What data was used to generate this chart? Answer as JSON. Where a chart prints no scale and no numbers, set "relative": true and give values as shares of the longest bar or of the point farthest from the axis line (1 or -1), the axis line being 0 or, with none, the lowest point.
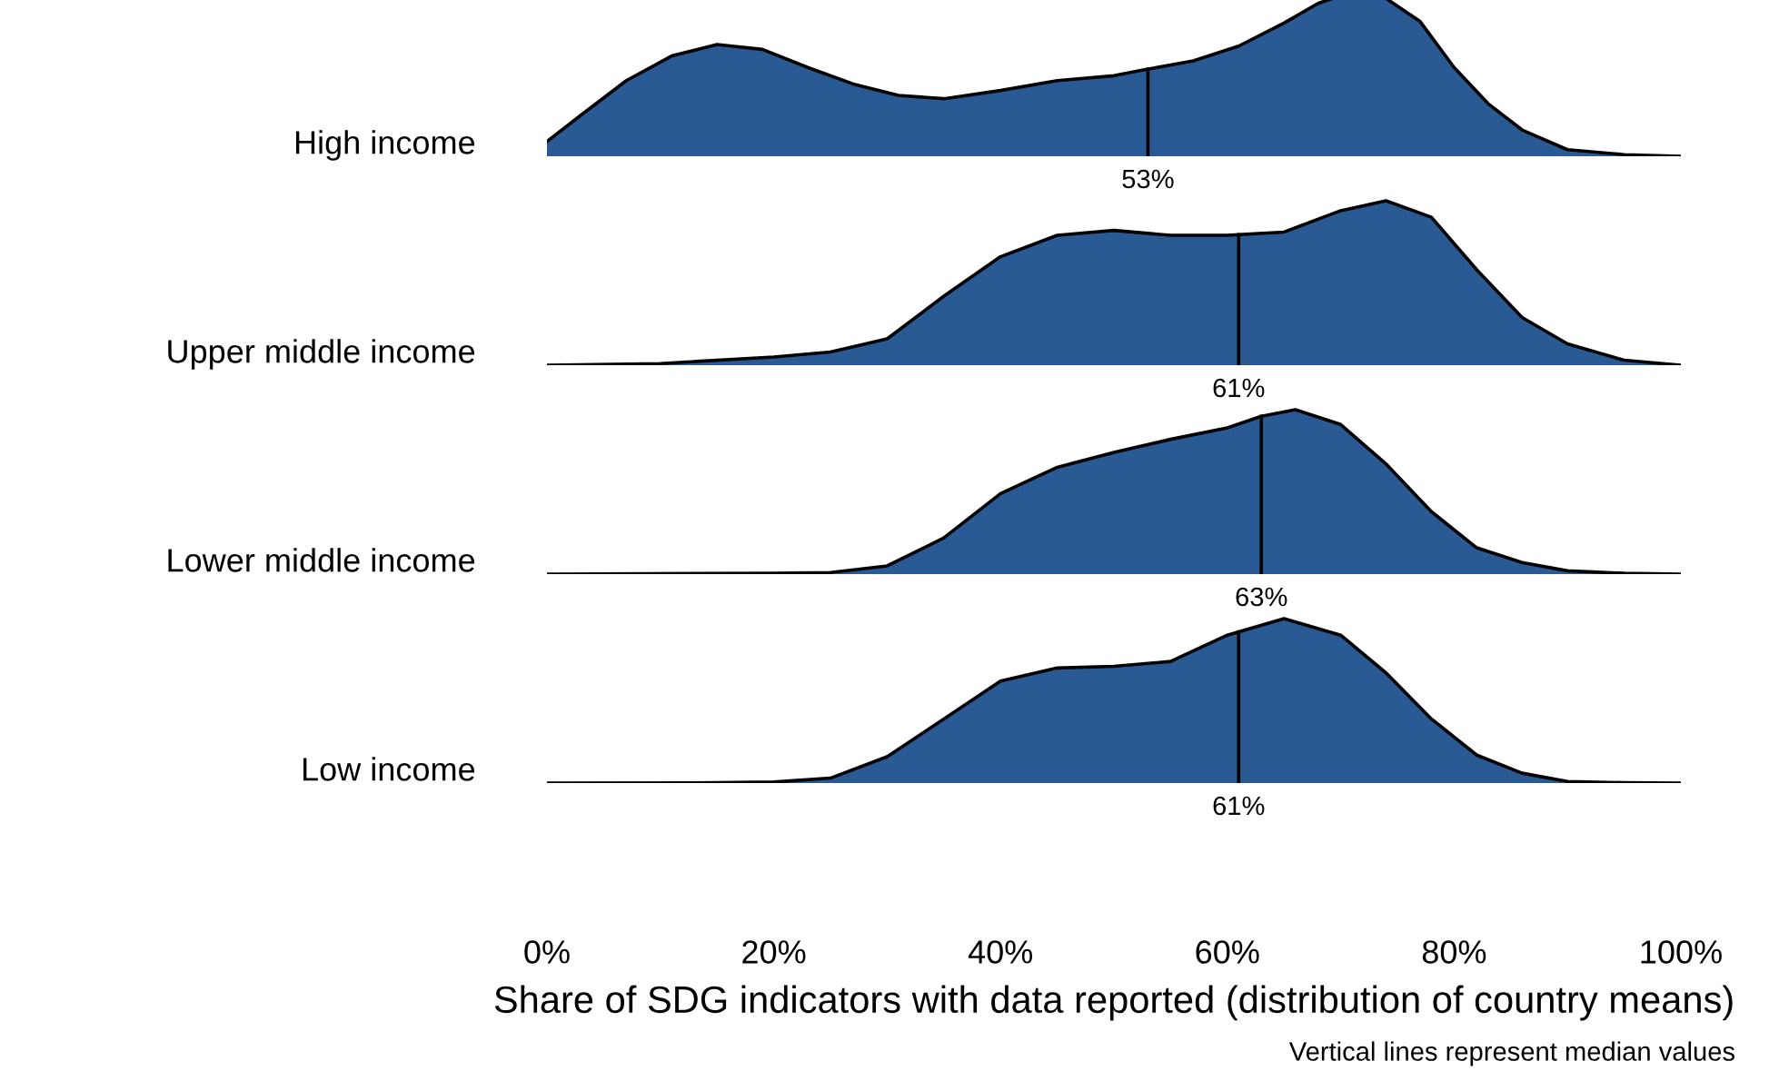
{
  "chart_data": [
    {
      "type": "area",
      "ylabel": "High income",
      "relative": true,
      "xlim": [
        0,
        100
      ],
      "tick_labels": false,
      "grid": false,
      "legend": false,
      "x": [
        0,
        3,
        7,
        11,
        15,
        19,
        23,
        27,
        31,
        35,
        40,
        45,
        50,
        53,
        57,
        61,
        65,
        68,
        71,
        74,
        77,
        80,
        83,
        86,
        90,
        95,
        100
      ],
      "series": [
        {
          "color": "#2a5a94",
          "values": [
            0.09,
            0.25,
            0.46,
            0.61,
            0.68,
            0.65,
            0.54,
            0.44,
            0.37,
            0.35,
            0.4,
            0.46,
            0.49,
            0.53,
            0.58,
            0.67,
            0.81,
            0.93,
            1,
            0.96,
            0.82,
            0.54,
            0.32,
            0.16,
            0.04,
            0.01,
            0
          ]
        }
      ],
      "ref_lines": [
        {
          "axis": "x",
          "value": 53,
          "label": "53%"
        }
      ]
    },
    {
      "type": "area",
      "ylabel": "Upper middle income",
      "relative": true,
      "xlim": [
        0,
        100
      ],
      "tick_labels": false,
      "grid": false,
      "legend": false,
      "x": [
        0,
        10,
        20,
        25,
        30,
        35,
        40,
        45,
        50,
        55,
        60,
        65,
        70,
        74,
        78,
        82,
        86,
        90,
        95,
        100
      ],
      "series": [
        {
          "color": "#2a5a94",
          "values": [
            0,
            0.01,
            0.05,
            0.08,
            0.16,
            0.42,
            0.66,
            0.79,
            0.82,
            0.79,
            0.79,
            0.81,
            0.94,
            1,
            0.9,
            0.58,
            0.29,
            0.13,
            0.03,
            0
          ]
        }
      ],
      "ref_lines": [
        {
          "axis": "x",
          "value": 61,
          "label": "61%"
        }
      ]
    },
    {
      "type": "area",
      "ylabel": "Lower middle income",
      "relative": true,
      "xlim": [
        0,
        100
      ],
      "tick_labels": false,
      "grid": false,
      "legend": false,
      "x": [
        0,
        20,
        25,
        30,
        35,
        40,
        45,
        50,
        55,
        60,
        63,
        66,
        70,
        74,
        78,
        82,
        86,
        90,
        95,
        100
      ],
      "series": [
        {
          "color": "#2a5a94",
          "values": [
            0,
            0.005,
            0.01,
            0.05,
            0.22,
            0.49,
            0.65,
            0.74,
            0.82,
            0.89,
            0.96,
            1,
            0.91,
            0.67,
            0.38,
            0.16,
            0.07,
            0.02,
            0.005,
            0
          ]
        }
      ],
      "ref_lines": [
        {
          "axis": "x",
          "value": 63,
          "label": "63%"
        }
      ]
    },
    {
      "type": "area",
      "ylabel": "Low income",
      "relative": true,
      "xlim": [
        0,
        100
      ],
      "tick_labels": "x",
      "grid": false,
      "legend": false,
      "x": [
        0,
        15,
        20,
        25,
        30,
        35,
        40,
        45,
        50,
        55,
        60,
        65,
        70,
        74,
        78,
        82,
        86,
        90,
        95,
        100
      ],
      "series": [
        {
          "color": "#2a5a94",
          "values": [
            0,
            0.002,
            0.006,
            0.03,
            0.16,
            0.39,
            0.62,
            0.7,
            0.71,
            0.74,
            0.9,
            1,
            0.9,
            0.67,
            0.39,
            0.17,
            0.06,
            0.01,
            0.002,
            0
          ]
        }
      ],
      "ref_lines": [
        {
          "axis": "x",
          "value": 61,
          "label": "61%"
        }
      ],
      "xticks": [
        {
          "value": 0,
          "label": "0%"
        },
        {
          "value": 20,
          "label": "20%"
        },
        {
          "value": 40,
          "label": "40%"
        },
        {
          "value": 60,
          "label": "60%"
        },
        {
          "value": 80,
          "label": "80%"
        },
        {
          "value": 100,
          "label": "100%"
        }
      ],
      "xlabel": "Share of SDG indicators with data reported (distribution of country means)",
      "annotations": [
        "Vertical lines represent median values"
      ]
    }
  ]
}
